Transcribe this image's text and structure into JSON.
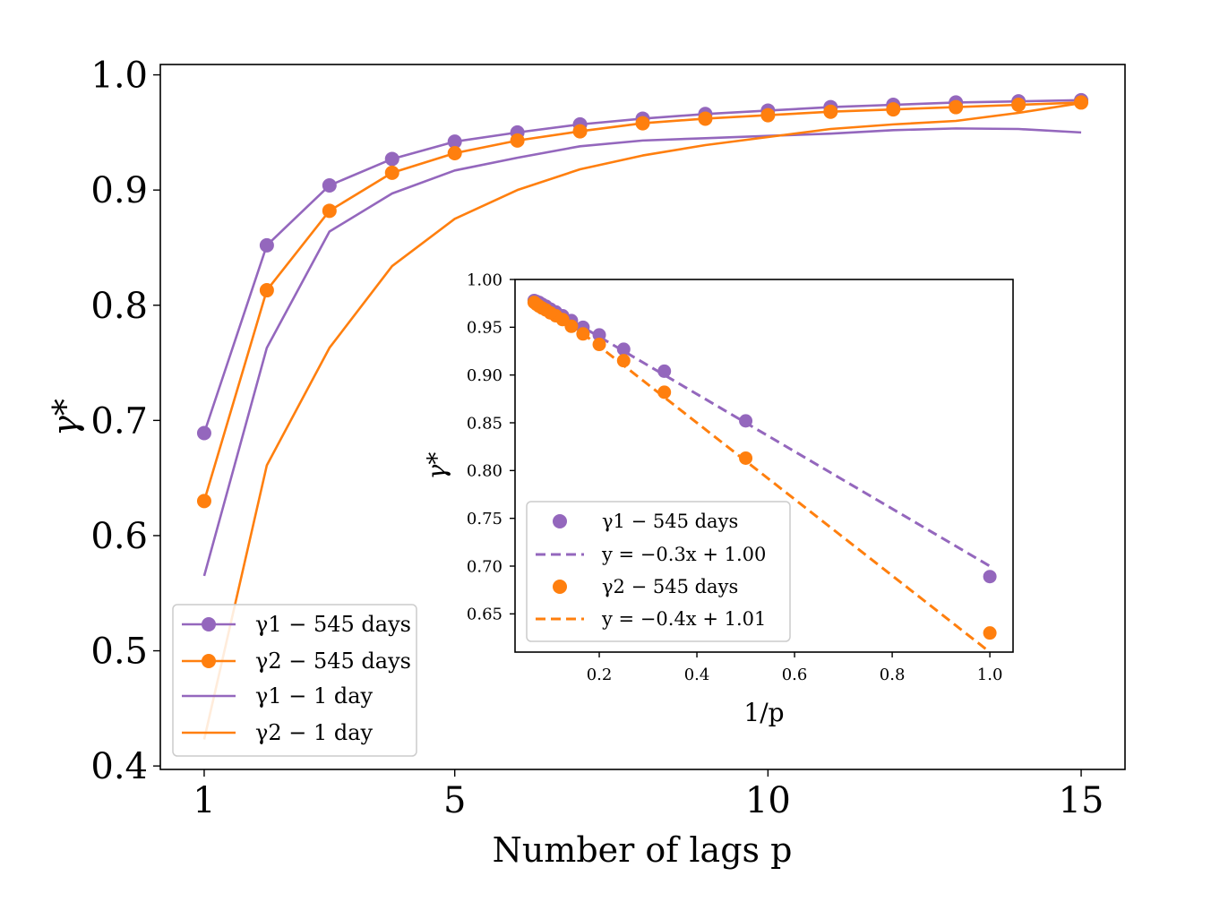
{
  "colors": {
    "gamma1": "#9467bd",
    "gamma2": "#ff7f0e",
    "axis": "#000000",
    "legend_border": "#cccccc"
  },
  "chart_data": [
    {
      "type": "line",
      "xlabel": "Number of lags p",
      "ylabel": "γ*",
      "xlim": [
        0.3,
        15.7
      ],
      "ylim": [
        0.397,
        1.009
      ],
      "xticks": [
        1,
        5,
        10,
        15
      ],
      "xtick_labels": [
        "1",
        "5",
        "10",
        "15"
      ],
      "yticks": [
        0.4,
        0.5,
        0.6,
        0.7,
        0.8,
        0.9,
        1.0
      ],
      "ytick_labels": [
        "0.4",
        "0.5",
        "0.6",
        "0.7",
        "0.8",
        "0.9",
        "1.0"
      ],
      "x": [
        1,
        2,
        3,
        4,
        5,
        6,
        7,
        8,
        9,
        10,
        11,
        12,
        13,
        14,
        15
      ],
      "series": [
        {
          "name": "γ1 − 545 days",
          "color_key": "gamma1",
          "style": "line-marker",
          "values": [
            0.689,
            0.852,
            0.904,
            0.927,
            0.942,
            0.95,
            0.957,
            0.962,
            0.966,
            0.969,
            0.972,
            0.974,
            0.976,
            0.977,
            0.978
          ]
        },
        {
          "name": "γ2 − 545 days",
          "color_key": "gamma2",
          "style": "line-marker",
          "values": [
            0.63,
            0.813,
            0.882,
            0.915,
            0.932,
            0.943,
            0.951,
            0.958,
            0.962,
            0.965,
            0.968,
            0.97,
            0.972,
            0.974,
            0.976
          ]
        },
        {
          "name": "γ1 − 1 day",
          "color_key": "gamma1",
          "style": "line",
          "values": [
            0.565,
            0.763,
            0.864,
            0.897,
            0.917,
            0.928,
            0.938,
            0.943,
            0.945,
            0.947,
            0.949,
            0.952,
            0.9535,
            0.953,
            0.95
          ]
        },
        {
          "name": "γ2 − 1 day",
          "color_key": "gamma2",
          "style": "line",
          "values": [
            0.423,
            0.661,
            0.763,
            0.834,
            0.875,
            0.9,
            0.918,
            0.93,
            0.939,
            0.946,
            0.953,
            0.957,
            0.96,
            0.967,
            0.9755
          ]
        }
      ],
      "legend": {
        "position": "lower-left",
        "entries": [
          "γ1 − 545 days",
          "γ2 − 545 days",
          "γ1 − 1 day",
          "γ2 − 1 day"
        ]
      }
    },
    {
      "type": "scatter",
      "inset": true,
      "xlabel": "1/p",
      "ylabel": "γ*",
      "xlim": [
        0.0275,
        1.0475
      ],
      "ylim": [
        0.61,
        1.0
      ],
      "xticks": [
        0.2,
        0.4,
        0.6,
        0.8,
        1.0
      ],
      "xtick_labels": [
        "0.2",
        "0.4",
        "0.6",
        "0.8",
        "1.0"
      ],
      "yticks": [
        0.65,
        0.7,
        0.75,
        0.8,
        0.85,
        0.9,
        0.95,
        1.0
      ],
      "ytick_labels": [
        "0.65",
        "0.70",
        "0.75",
        "0.80",
        "0.85",
        "0.90",
        "0.95",
        "1.00"
      ],
      "series": [
        {
          "name": "γ1 − 545 days",
          "color_key": "gamma1",
          "style": "scatter",
          "x": [
            1.0,
            0.5,
            0.3333,
            0.25,
            0.2,
            0.1667,
            0.1429,
            0.125,
            0.1111,
            0.1,
            0.0909,
            0.0833,
            0.0769,
            0.0714,
            0.0667
          ],
          "y": [
            0.689,
            0.852,
            0.904,
            0.927,
            0.942,
            0.95,
            0.957,
            0.962,
            0.966,
            0.969,
            0.972,
            0.974,
            0.976,
            0.977,
            0.978
          ]
        },
        {
          "name": "y = −0.3x + 1.00",
          "color_key": "gamma1",
          "style": "dashed",
          "slope": -0.3,
          "intercept": 1.0,
          "x_range": [
            0.0667,
            1.0
          ]
        },
        {
          "name": "γ2 − 545 days",
          "color_key": "gamma2",
          "style": "scatter",
          "x": [
            1.0,
            0.5,
            0.3333,
            0.25,
            0.2,
            0.1667,
            0.1429,
            0.125,
            0.1111,
            0.1,
            0.0909,
            0.0833,
            0.0769,
            0.0714,
            0.0667
          ],
          "y": [
            0.63,
            0.813,
            0.882,
            0.915,
            0.932,
            0.943,
            0.951,
            0.958,
            0.962,
            0.965,
            0.968,
            0.97,
            0.972,
            0.974,
            0.976
          ]
        },
        {
          "name": "y = −0.4x + 1.01",
          "color_key": "gamma2",
          "style": "dashed",
          "slope": -0.4,
          "intercept": 1.01,
          "x_range": [
            0.0667,
            1.0
          ]
        }
      ],
      "legend": {
        "position": "lower-left",
        "entries": [
          "γ1 − 545 days",
          "y = −0.3x + 1.00",
          "γ2 − 545 days",
          "y = −0.4x + 1.01"
        ]
      }
    }
  ]
}
